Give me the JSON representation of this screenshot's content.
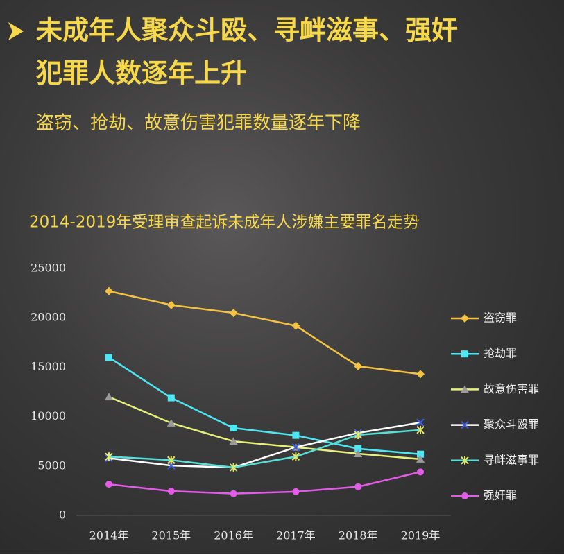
{
  "header": {
    "title_lines": [
      "未成年人聚众斗殴、寻衅滋事、强奸",
      "犯罪人数逐年上升"
    ],
    "subtitle": "盗窃、抢劫、故意伤害犯罪数量逐年下降"
  },
  "chart_data": {
    "type": "line",
    "title": "2014-2019年受理审查起诉未成年人涉嫌主要罪名走势",
    "categories": [
      "2014年",
      "2015年",
      "2016年",
      "2017年",
      "2018年",
      "2019年"
    ],
    "ylim": [
      0,
      25000
    ],
    "yticks": [
      0,
      5000,
      10000,
      15000,
      20000,
      25000
    ],
    "grid": false,
    "legend": "right",
    "series": [
      {
        "name": "盗窃罪",
        "color": "#f5c242",
        "marker": "diamond",
        "marker_color": "#f5c242",
        "values": [
          22700,
          21300,
          20500,
          19200,
          15100,
          14300
        ]
      },
      {
        "name": "抢劫罪",
        "color": "#4de6f2",
        "marker": "square",
        "marker_color": "#4de6f2",
        "values": [
          16000,
          11900,
          8850,
          8100,
          6750,
          6200
        ]
      },
      {
        "name": "故意伤害罪",
        "color": "#e6f07a",
        "marker": "triangle",
        "marker_color": "#9a9a9a",
        "values": [
          12000,
          9350,
          7500,
          6900,
          6250,
          5700
        ]
      },
      {
        "name": "聚众斗殴罪",
        "color": "#ffffff",
        "marker": "x",
        "marker_color": "#3b5de8",
        "values": [
          5800,
          5050,
          4850,
          6900,
          8350,
          9400
        ]
      },
      {
        "name": "寻衅滋事罪",
        "color": "#55e0d8",
        "marker": "asterisk",
        "marker_color": "#e6e86a",
        "values": [
          5950,
          5600,
          4850,
          5950,
          8150,
          8650
        ]
      },
      {
        "name": "强奸罪",
        "color": "#e25ce8",
        "marker": "circle",
        "marker_color": "#e25ce8",
        "values": [
          3150,
          2450,
          2200,
          2400,
          2900,
          4400
        ]
      }
    ]
  }
}
